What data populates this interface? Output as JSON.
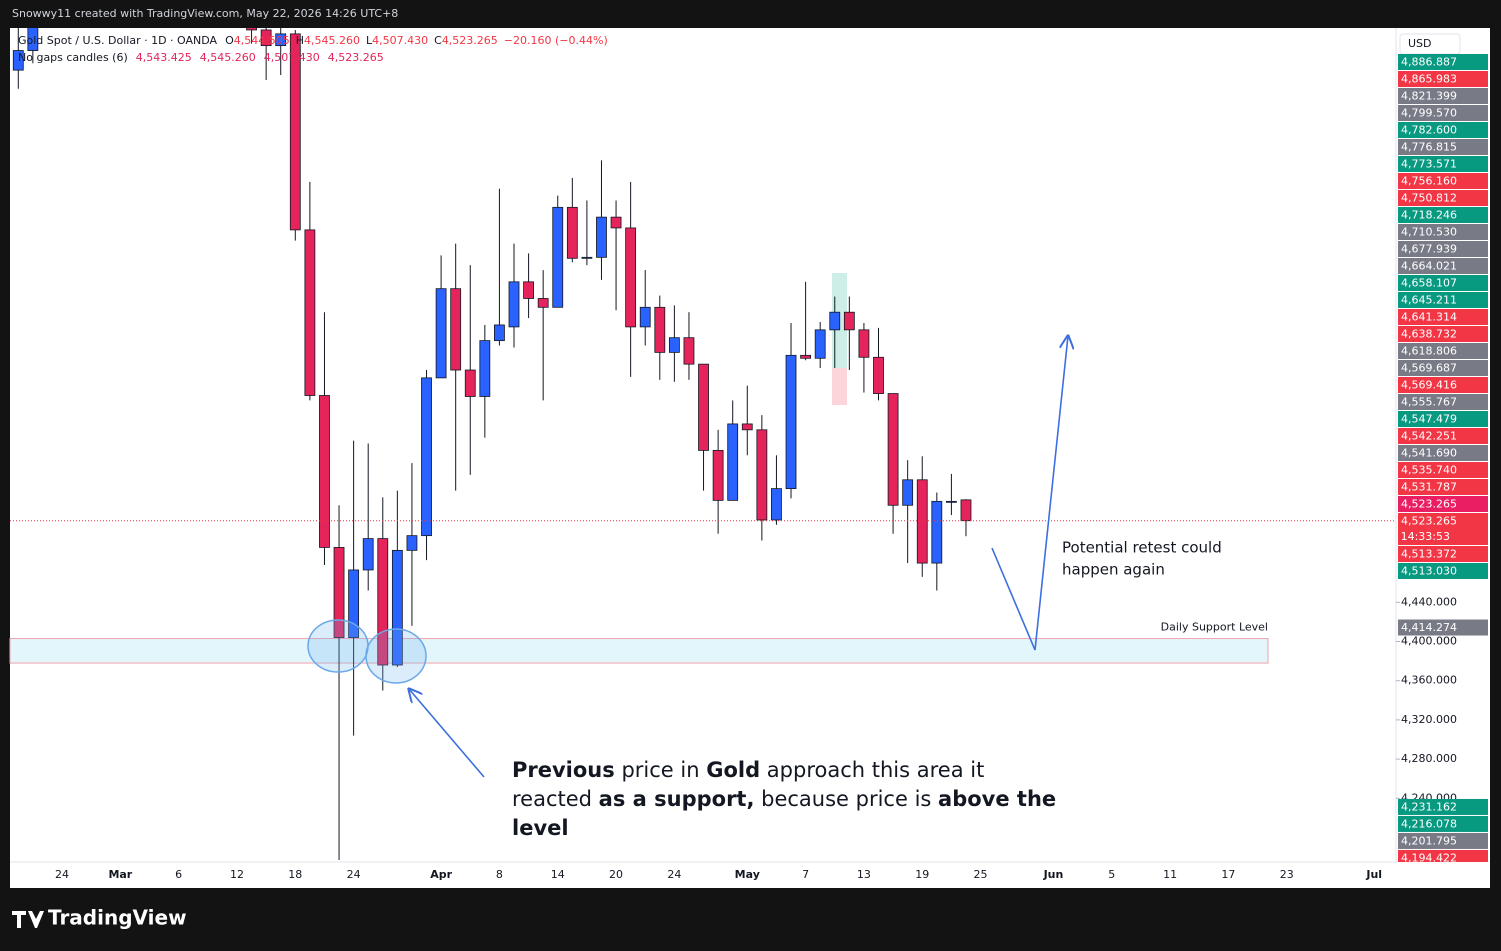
{
  "chart_data": {
    "type": "candlestick",
    "credit": "Snowwy11 created with TradingView.com, May 22, 2026 14:26 UTC+8",
    "symbol": "Gold Spot / U.S. Dollar · 1D · OANDA",
    "ohlc": [
      {
        "key": "O",
        "value": "4,544.505"
      },
      {
        "key": "H",
        "value": "4,545.260"
      },
      {
        "key": "L",
        "value": "4,507.430"
      },
      {
        "key": "C",
        "value": "4,523.265"
      }
    ],
    "change": "−20.160 (−0.44%)",
    "indicator": {
      "name": "No gaps candles (6)",
      "values": [
        "4,543.425",
        "4,545.260",
        "4,507.430",
        "4,523.265"
      ]
    },
    "currency": "USD",
    "brand": "TradingView",
    "categories": [
      null,
      null,
      null,
      null,
      "24",
      null,
      null,
      null,
      "Mar",
      null,
      null,
      null,
      "6",
      null,
      null,
      null,
      "12",
      null,
      null,
      null,
      "18",
      null,
      null,
      null,
      "24",
      null,
      null,
      null,
      null,
      null,
      "Apr",
      null,
      null,
      null,
      "8",
      null,
      null,
      null,
      "14",
      null,
      null,
      null,
      "20",
      null,
      null,
      null,
      "24",
      null,
      null,
      null,
      null,
      "May",
      null,
      null,
      null,
      "7",
      null,
      null,
      null,
      "13",
      null,
      null,
      null,
      "19",
      null,
      null,
      null,
      "25",
      null,
      null,
      null,
      null,
      "Jun",
      null,
      null,
      null,
      "5",
      null,
      null,
      null,
      "11",
      null,
      null,
      null,
      "17",
      null,
      null,
      null,
      "23",
      null,
      null,
      null,
      null,
      null,
      "Jul",
      null
    ],
    "open": [
      null,
      4983,
      5003,
      null,
      null,
      null,
      null,
      null,
      null,
      null,
      null,
      null,
      null,
      null,
      null,
      null,
      null,
      5030,
      5024,
      5008,
      5020,
      4820,
      4651,
      4496,
      4404,
      4473,
      4505,
      4376,
      4493,
      4508,
      4669,
      4760,
      4677,
      4650,
      4707,
      4721,
      4767,
      4750,
      4741,
      4843,
      4791,
      4792,
      4833,
      4822,
      4721,
      4741,
      4695,
      4710,
      4683,
      4595,
      4544,
      4622,
      4616,
      4524,
      4556,
      4692,
      4689,
      4718,
      4736,
      4718,
      4690,
      4653,
      4539,
      4565,
      4480,
      4543,
      4544.505,
      null,
      null,
      null,
      null,
      null,
      null,
      null,
      null,
      null,
      null,
      null,
      null,
      null,
      null,
      null,
      null,
      null,
      null,
      null,
      null,
      null,
      null,
      null,
      null,
      null,
      null,
      null,
      null,
      null
    ],
    "high": [
      null,
      5030,
      5040,
      null,
      null,
      null,
      null,
      null,
      null,
      null,
      null,
      null,
      null,
      null,
      null,
      null,
      null,
      5040,
      5035,
      5040,
      5024,
      4869,
      4736,
      4539,
      4605,
      4602,
      4547,
      4554,
      4582,
      4677,
      4794,
      4806,
      4784,
      4723,
      4862,
      4806,
      4796,
      4779,
      4855,
      4873,
      4850,
      4891,
      4850,
      4869,
      4779,
      4753,
      4743,
      4736,
      4683,
      4616,
      4646,
      4661,
      4631,
      4590,
      4725,
      4767,
      4726,
      4752,
      4752,
      4725,
      4720,
      4653,
      4585,
      4589,
      4552,
      4571,
      4545.26,
      null,
      null,
      null,
      null,
      null,
      null,
      null,
      null,
      null,
      null,
      null,
      null,
      null,
      null,
      null,
      null,
      null,
      null,
      null,
      null,
      null,
      null,
      null,
      null,
      null,
      null,
      null,
      null,
      null
    ],
    "low": [
      null,
      4964,
      4990,
      null,
      null,
      null,
      null,
      null,
      null,
      null,
      null,
      null,
      null,
      null,
      null,
      null,
      null,
      5010,
      4973,
      4978,
      4809,
      4646,
      4478,
      4177,
      4304,
      4452,
      4350,
      4374,
      4416,
      4483,
      4672,
      4554,
      4570,
      4608,
      4702,
      4700,
      4730,
      4646,
      4741,
      4787,
      4784,
      4769,
      4738,
      4670,
      4702,
      4667,
      4665,
      4667,
      4554,
      4510,
      4544,
      4590,
      4503,
      4519,
      4546,
      4687,
      4679,
      4679,
      4677,
      4654,
      4646,
      4510,
      4480,
      4466,
      4452,
      4529,
      4507.43,
      null,
      null,
      null,
      null,
      null,
      null,
      null,
      null,
      null,
      null,
      null,
      null,
      null,
      null,
      null,
      null,
      null,
      null,
      null,
      null,
      null,
      null,
      null,
      null,
      null,
      null,
      null,
      null,
      null
    ],
    "close": [
      null,
      5003,
      5030,
      null,
      null,
      null,
      null,
      null,
      null,
      null,
      null,
      null,
      null,
      null,
      null,
      null,
      null,
      5024,
      5008,
      5020,
      4820,
      4651,
      4496,
      4404,
      4473,
      4505,
      4376,
      4493,
      4508,
      4669,
      4760,
      4677,
      4650,
      4707,
      4723,
      4767,
      4750,
      4741,
      4843,
      4791,
      4792,
      4833,
      4822,
      4721,
      4741,
      4695,
      4710,
      4683,
      4595,
      4544,
      4622,
      4616,
      4524,
      4556,
      4692,
      4689,
      4718,
      4736,
      4718,
      4690,
      4653,
      4539,
      4565,
      4480,
      4543,
      4543,
      4523.265,
      null,
      null,
      null,
      null,
      null,
      null,
      null,
      null,
      null,
      null,
      null,
      null,
      null,
      null,
      null,
      null,
      null,
      null,
      null,
      null,
      null,
      null,
      null,
      null,
      null,
      null,
      null,
      null,
      null
    ],
    "up_color": "#2962ff",
    "down_color": "#e4245b",
    "ylim": [
      4175,
      5026
    ],
    "yticks": [
      {
        "value": 4440,
        "label": "4,440.000"
      },
      {
        "value": 4400,
        "label": "4,400.000"
      },
      {
        "value": 4360,
        "label": "4,360.000"
      },
      {
        "value": 4320,
        "label": "4,320.000"
      },
      {
        "value": 4280,
        "label": "4,280.000"
      },
      {
        "value": 4240,
        "label": "4,240.000"
      }
    ],
    "price_tags_top": [
      {
        "label": "4,886.887",
        "color": "#089981"
      },
      {
        "label": "4,865.983",
        "color": "#f23645"
      },
      {
        "label": "4,821.399",
        "color": "#787b86"
      },
      {
        "label": "4,799.570",
        "color": "#787b86"
      },
      {
        "label": "4,782.600",
        "color": "#089981"
      },
      {
        "label": "4,776.815",
        "color": "#787b86"
      },
      {
        "label": "4,773.571",
        "color": "#089981"
      },
      {
        "label": "4,756.160",
        "color": "#f23645"
      },
      {
        "label": "4,750.812",
        "color": "#f23645"
      },
      {
        "label": "4,718.246",
        "color": "#089981"
      },
      {
        "label": "4,710.530",
        "color": "#787b86"
      },
      {
        "label": "4,677.939",
        "color": "#787b86"
      },
      {
        "label": "4,664.021",
        "color": "#787b86"
      },
      {
        "label": "4,658.107",
        "color": "#089981"
      },
      {
        "label": "4,645.211",
        "color": "#089981"
      },
      {
        "label": "4,641.314",
        "color": "#f23645"
      },
      {
        "label": "4,638.732",
        "color": "#f23645"
      },
      {
        "label": "4,618.806",
        "color": "#787b86"
      },
      {
        "label": "4,569.687",
        "color": "#787b86"
      },
      {
        "label": "4,569.416",
        "color": "#f23645"
      },
      {
        "label": "4,555.767",
        "color": "#787b86"
      },
      {
        "label": "4,547.479",
        "color": "#089981"
      },
      {
        "label": "4,542.251",
        "color": "#f23645"
      },
      {
        "label": "4,541.690",
        "color": "#787b86"
      },
      {
        "label": "4,535.740",
        "color": "#f23645"
      },
      {
        "label": "4,531.787",
        "color": "#f23645"
      },
      {
        "label": "4,523.265",
        "color": "#e91e63"
      },
      {
        "label": "4,523.265",
        "color": "#f23645",
        "countdown": "14:33:53"
      },
      {
        "label": "4,513.372",
        "color": "#f23645"
      },
      {
        "label": "4,513.030",
        "color": "#089981"
      }
    ],
    "price_tags_bottom": [
      {
        "value": 4414.274,
        "label": "4,414.274",
        "color": "#787b86"
      },
      {
        "value": 4231.162,
        "label": "4,231.162",
        "color": "#089981"
      },
      {
        "value": 4216.078,
        "label": "4,216.078",
        "color": "#089981"
      },
      {
        "value": 4201.795,
        "label": "4,201.795",
        "color": "#787b86"
      },
      {
        "value": 4194.422,
        "label": "4,194.422",
        "color": "#f23645"
      }
    ],
    "zone": {
      "label": "Daily Support Level",
      "top": 4403,
      "bottom": 4378
    },
    "retest_note": [
      "Potential retest could",
      "happen again"
    ],
    "support_note": [
      [
        {
          "text": "Previous",
          "bold": true
        },
        {
          "text": " price in ",
          "bold": false
        },
        {
          "text": "Gold",
          "bold": true
        },
        {
          "text": " approach this area it",
          "bold": false
        }
      ],
      [
        {
          "text": "reacted ",
          "bold": false
        },
        {
          "text": "as a support,",
          "bold": true
        },
        {
          "text": " because price is ",
          "bold": false
        },
        {
          "text": "above the",
          "bold": true
        }
      ],
      [
        {
          "text": "level",
          "bold": true
        }
      ]
    ]
  }
}
